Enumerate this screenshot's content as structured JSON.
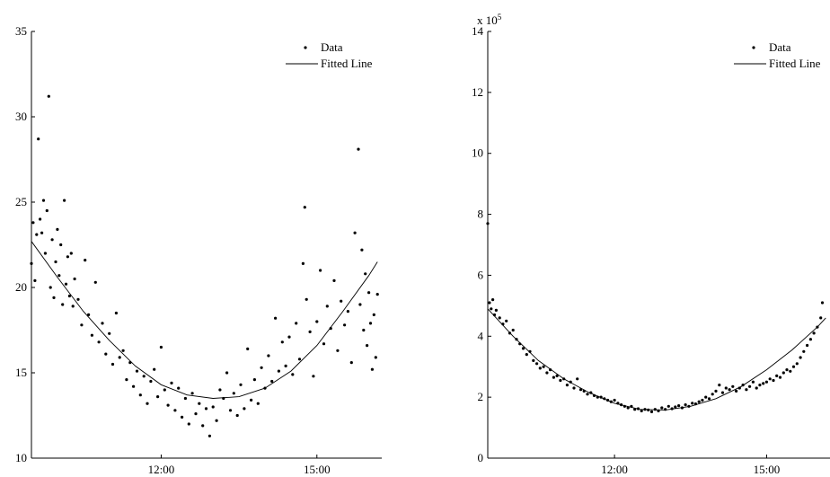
{
  "chart_data": [
    {
      "type": "scatter",
      "x_axis_type": "time",
      "xlim": [
        "09:30",
        "16:15"
      ],
      "ylim": [
        10,
        35
      ],
      "xticks": [
        "12:00",
        "15:00"
      ],
      "yticks": [
        10,
        15,
        20,
        25,
        30,
        35
      ],
      "grid": false,
      "legend_position": "top-right",
      "legend": [
        "Data",
        "Fitted Line"
      ],
      "series": [
        {
          "name": "Data",
          "kind": "points",
          "points": [
            [
              "09:30",
              21.4
            ],
            [
              "09:32",
              23.8
            ],
            [
              "09:34",
              20.4
            ],
            [
              "09:36",
              23.1
            ],
            [
              "09:38",
              28.7
            ],
            [
              "09:40",
              24.0
            ],
            [
              "09:42",
              23.2
            ],
            [
              "09:44",
              25.1
            ],
            [
              "09:46",
              22.0
            ],
            [
              "09:48",
              24.5
            ],
            [
              "09:50",
              31.2
            ],
            [
              "09:52",
              20.0
            ],
            [
              "09:54",
              22.8
            ],
            [
              "09:56",
              19.4
            ],
            [
              "09:58",
              21.5
            ],
            [
              "10:00",
              23.4
            ],
            [
              "10:02",
              20.7
            ],
            [
              "10:04",
              22.5
            ],
            [
              "10:06",
              19.0
            ],
            [
              "10:08",
              25.1
            ],
            [
              "10:10",
              20.2
            ],
            [
              "10:12",
              21.8
            ],
            [
              "10:14",
              19.5
            ],
            [
              "10:16",
              22.0
            ],
            [
              "10:18",
              18.9
            ],
            [
              "10:20",
              20.5
            ],
            [
              "10:24",
              19.3
            ],
            [
              "10:28",
              17.8
            ],
            [
              "10:32",
              21.6
            ],
            [
              "10:36",
              18.4
            ],
            [
              "10:40",
              17.2
            ],
            [
              "10:44",
              20.3
            ],
            [
              "10:48",
              16.8
            ],
            [
              "10:52",
              17.9
            ],
            [
              "10:56",
              16.1
            ],
            [
              "11:00",
              17.3
            ],
            [
              "11:04",
              15.5
            ],
            [
              "11:08",
              18.5
            ],
            [
              "11:12",
              15.9
            ],
            [
              "11:16",
              16.3
            ],
            [
              "11:20",
              14.6
            ],
            [
              "11:24",
              15.6
            ],
            [
              "11:28",
              14.2
            ],
            [
              "11:32",
              15.1
            ],
            [
              "11:36",
              13.7
            ],
            [
              "11:40",
              14.8
            ],
            [
              "11:44",
              13.2
            ],
            [
              "11:48",
              14.5
            ],
            [
              "11:52",
              15.2
            ],
            [
              "11:56",
              13.6
            ],
            [
              "12:00",
              16.5
            ],
            [
              "12:04",
              14.0
            ],
            [
              "12:08",
              13.1
            ],
            [
              "12:12",
              14.4
            ],
            [
              "12:16",
              12.8
            ],
            [
              "12:20",
              14.1
            ],
            [
              "12:24",
              12.4
            ],
            [
              "12:28",
              13.5
            ],
            [
              "12:32",
              12.0
            ],
            [
              "12:36",
              13.8
            ],
            [
              "12:40",
              12.6
            ],
            [
              "12:44",
              13.2
            ],
            [
              "12:48",
              11.9
            ],
            [
              "12:52",
              12.9
            ],
            [
              "12:56",
              11.3
            ],
            [
              "13:00",
              13.0
            ],
            [
              "13:04",
              12.2
            ],
            [
              "13:08",
              14.0
            ],
            [
              "13:12",
              13.5
            ],
            [
              "13:16",
              15.0
            ],
            [
              "13:20",
              12.8
            ],
            [
              "13:24",
              13.8
            ],
            [
              "13:28",
              12.5
            ],
            [
              "13:32",
              14.3
            ],
            [
              "13:36",
              12.9
            ],
            [
              "13:40",
              16.4
            ],
            [
              "13:44",
              13.4
            ],
            [
              "13:48",
              14.6
            ],
            [
              "13:52",
              13.2
            ],
            [
              "13:56",
              15.3
            ],
            [
              "14:00",
              14.1
            ],
            [
              "14:04",
              16.0
            ],
            [
              "14:08",
              14.5
            ],
            [
              "14:12",
              18.2
            ],
            [
              "14:16",
              15.1
            ],
            [
              "14:20",
              16.8
            ],
            [
              "14:24",
              15.4
            ],
            [
              "14:28",
              17.1
            ],
            [
              "14:32",
              14.9
            ],
            [
              "14:36",
              17.9
            ],
            [
              "14:40",
              15.8
            ],
            [
              "14:44",
              21.4
            ],
            [
              "14:46",
              24.7
            ],
            [
              "14:48",
              19.3
            ],
            [
              "14:52",
              17.4
            ],
            [
              "14:56",
              14.8
            ],
            [
              "15:00",
              18.0
            ],
            [
              "15:04",
              21.0
            ],
            [
              "15:08",
              16.7
            ],
            [
              "15:12",
              18.9
            ],
            [
              "15:16",
              17.6
            ],
            [
              "15:20",
              20.4
            ],
            [
              "15:24",
              16.3
            ],
            [
              "15:28",
              19.2
            ],
            [
              "15:32",
              17.8
            ],
            [
              "15:36",
              18.6
            ],
            [
              "15:40",
              15.6
            ],
            [
              "15:44",
              23.2
            ],
            [
              "15:48",
              28.1
            ],
            [
              "15:50",
              19.0
            ],
            [
              "15:52",
              22.2
            ],
            [
              "15:54",
              17.5
            ],
            [
              "15:56",
              20.8
            ],
            [
              "15:58",
              16.6
            ],
            [
              "16:00",
              19.7
            ],
            [
              "16:02",
              17.9
            ],
            [
              "16:04",
              15.2
            ],
            [
              "16:06",
              18.4
            ],
            [
              "16:08",
              15.9
            ],
            [
              "16:10",
              19.6
            ]
          ]
        },
        {
          "name": "Fitted Line",
          "kind": "line",
          "points": [
            [
              "09:30",
              22.7
            ],
            [
              "10:00",
              20.6
            ],
            [
              "10:30",
              18.6
            ],
            [
              "11:00",
              16.9
            ],
            [
              "11:30",
              15.4
            ],
            [
              "12:00",
              14.3
            ],
            [
              "12:30",
              13.7
            ],
            [
              "13:00",
              13.5
            ],
            [
              "13:30",
              13.6
            ],
            [
              "14:00",
              14.1
            ],
            [
              "14:30",
              15.1
            ],
            [
              "15:00",
              16.6
            ],
            [
              "15:30",
              18.6
            ],
            [
              "16:00",
              20.7
            ],
            [
              "16:10",
              21.5
            ]
          ]
        }
      ]
    },
    {
      "type": "scatter",
      "x_axis_type": "time",
      "xlim": [
        "09:30",
        "16:15"
      ],
      "ylim": [
        0,
        14
      ],
      "y_multiplier_label": "x 10",
      "y_multiplier_exponent": "5",
      "xticks": [
        "12:00",
        "15:00"
      ],
      "yticks": [
        0,
        2,
        4,
        6,
        8,
        10,
        12,
        14
      ],
      "grid": false,
      "legend_position": "top-right",
      "legend": [
        "Data",
        "Fitted Line"
      ],
      "series": [
        {
          "name": "Data",
          "kind": "points",
          "points": [
            [
              "09:30",
              7.7
            ],
            [
              "09:32",
              5.1
            ],
            [
              "09:34",
              4.9
            ],
            [
              "09:36",
              5.2
            ],
            [
              "09:38",
              4.7
            ],
            [
              "09:40",
              4.85
            ],
            [
              "09:44",
              4.6
            ],
            [
              "09:48",
              4.4
            ],
            [
              "09:52",
              4.5
            ],
            [
              "09:56",
              4.1
            ],
            [
              "10:00",
              4.2
            ],
            [
              "10:04",
              3.9
            ],
            [
              "10:08",
              3.75
            ],
            [
              "10:12",
              3.6
            ],
            [
              "10:16",
              3.4
            ],
            [
              "10:20",
              3.5
            ],
            [
              "10:24",
              3.2
            ],
            [
              "10:28",
              3.1
            ],
            [
              "10:32",
              2.95
            ],
            [
              "10:36",
              3.0
            ],
            [
              "10:40",
              2.8
            ],
            [
              "10:44",
              2.9
            ],
            [
              "10:48",
              2.65
            ],
            [
              "10:52",
              2.7
            ],
            [
              "10:56",
              2.55
            ],
            [
              "11:00",
              2.6
            ],
            [
              "11:04",
              2.4
            ],
            [
              "11:08",
              2.5
            ],
            [
              "11:12",
              2.3
            ],
            [
              "11:16",
              2.6
            ],
            [
              "11:20",
              2.25
            ],
            [
              "11:24",
              2.2
            ],
            [
              "11:28",
              2.1
            ],
            [
              "11:32",
              2.15
            ],
            [
              "11:36",
              2.05
            ],
            [
              "11:40",
              2.0
            ],
            [
              "11:44",
              2.0
            ],
            [
              "11:48",
              1.95
            ],
            [
              "11:52",
              1.9
            ],
            [
              "11:56",
              1.85
            ],
            [
              "12:00",
              1.9
            ],
            [
              "12:04",
              1.8
            ],
            [
              "12:08",
              1.75
            ],
            [
              "12:12",
              1.7
            ],
            [
              "12:16",
              1.65
            ],
            [
              "12:20",
              1.7
            ],
            [
              "12:24",
              1.6
            ],
            [
              "12:28",
              1.62
            ],
            [
              "12:32",
              1.55
            ],
            [
              "12:36",
              1.6
            ],
            [
              "12:40",
              1.58
            ],
            [
              "12:44",
              1.52
            ],
            [
              "12:48",
              1.6
            ],
            [
              "12:52",
              1.55
            ],
            [
              "12:56",
              1.65
            ],
            [
              "13:00",
              1.6
            ],
            [
              "13:04",
              1.7
            ],
            [
              "13:08",
              1.62
            ],
            [
              "13:12",
              1.68
            ],
            [
              "13:16",
              1.72
            ],
            [
              "13:20",
              1.65
            ],
            [
              "13:24",
              1.75
            ],
            [
              "13:28",
              1.7
            ],
            [
              "13:32",
              1.8
            ],
            [
              "13:36",
              1.78
            ],
            [
              "13:40",
              1.85
            ],
            [
              "13:44",
              1.9
            ],
            [
              "13:48",
              2.0
            ],
            [
              "13:52",
              1.95
            ],
            [
              "13:56",
              2.1
            ],
            [
              "14:00",
              2.2
            ],
            [
              "14:04",
              2.4
            ],
            [
              "14:08",
              2.15
            ],
            [
              "14:12",
              2.3
            ],
            [
              "14:16",
              2.25
            ],
            [
              "14:20",
              2.35
            ],
            [
              "14:24",
              2.2
            ],
            [
              "14:28",
              2.3
            ],
            [
              "14:32",
              2.4
            ],
            [
              "14:36",
              2.25
            ],
            [
              "14:40",
              2.35
            ],
            [
              "14:44",
              2.5
            ],
            [
              "14:48",
              2.3
            ],
            [
              "14:52",
              2.4
            ],
            [
              "14:56",
              2.45
            ],
            [
              "15:00",
              2.5
            ],
            [
              "15:04",
              2.6
            ],
            [
              "15:08",
              2.55
            ],
            [
              "15:12",
              2.7
            ],
            [
              "15:16",
              2.65
            ],
            [
              "15:20",
              2.8
            ],
            [
              "15:24",
              2.9
            ],
            [
              "15:28",
              2.85
            ],
            [
              "15:32",
              3.0
            ],
            [
              "15:36",
              3.1
            ],
            [
              "15:40",
              3.3
            ],
            [
              "15:44",
              3.5
            ],
            [
              "15:48",
              3.7
            ],
            [
              "15:52",
              3.9
            ],
            [
              "15:56",
              4.1
            ],
            [
              "16:00",
              4.3
            ],
            [
              "16:04",
              4.6
            ],
            [
              "16:06",
              5.1
            ]
          ]
        },
        {
          "name": "Fitted Line",
          "kind": "line",
          "points": [
            [
              "09:30",
              4.9
            ],
            [
              "10:00",
              4.0
            ],
            [
              "10:30",
              3.2
            ],
            [
              "11:00",
              2.6
            ],
            [
              "11:30",
              2.15
            ],
            [
              "12:00",
              1.8
            ],
            [
              "12:30",
              1.6
            ],
            [
              "13:00",
              1.58
            ],
            [
              "13:30",
              1.7
            ],
            [
              "14:00",
              1.95
            ],
            [
              "14:30",
              2.35
            ],
            [
              "15:00",
              2.9
            ],
            [
              "15:30",
              3.55
            ],
            [
              "16:00",
              4.3
            ],
            [
              "16:10",
              4.6
            ]
          ]
        }
      ]
    }
  ]
}
